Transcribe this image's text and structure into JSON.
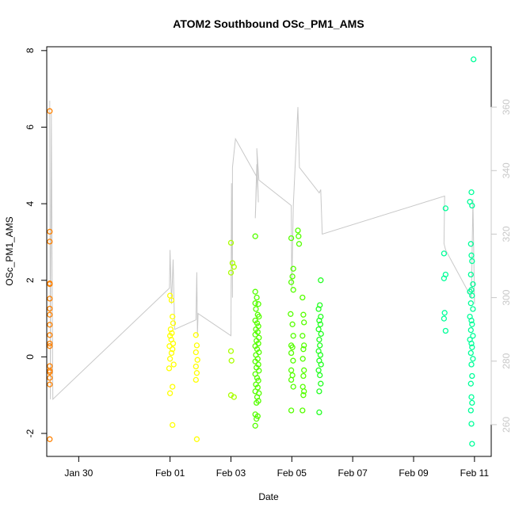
{
  "chart_data": {
    "type": "scatter",
    "title": "ATOM2 Southbound OSc_PM1_AMS",
    "xlabel": "Date",
    "ylabel": "OSc_PM1_AMS",
    "x_unit": "day (day 1 = Feb 01)",
    "xlim": [
      -3.05,
      11.55
    ],
    "ylim": [
      -2.6,
      8.1
    ],
    "x_ticks": [
      {
        "value": -2,
        "label": "Jan 30"
      },
      {
        "value": 1,
        "label": "Feb 01"
      },
      {
        "value": 3,
        "label": "Feb 03"
      },
      {
        "value": 5,
        "label": "Feb 05"
      },
      {
        "value": 7,
        "label": "Feb 07"
      },
      {
        "value": 9,
        "label": "Feb 09"
      },
      {
        "value": 11,
        "label": "Feb 11"
      }
    ],
    "y_ticks": [
      -2,
      0,
      2,
      4,
      6,
      8
    ],
    "y2_ticks": [
      260,
      280,
      300,
      320,
      340,
      360
    ],
    "y2lim": [
      250,
      379
    ],
    "grid": false,
    "secondary_line_color": "#c8c8c8",
    "secondary_axis_color": "#c8c8c8",
    "series": [
      {
        "color": "#ff8000",
        "points": [
          [
            -2.95,
            6.42
          ],
          [
            -2.95,
            3.27
          ],
          [
            -2.95,
            3.01
          ],
          [
            -2.95,
            1.92
          ],
          [
            -2.95,
            1.9
          ],
          [
            -2.95,
            1.52
          ],
          [
            -2.95,
            1.26
          ],
          [
            -2.95,
            1.1
          ],
          [
            -2.95,
            0.84
          ],
          [
            -2.95,
            0.57
          ],
          [
            -2.95,
            0.35
          ],
          [
            -2.95,
            0.28
          ],
          [
            -2.95,
            -0.24
          ],
          [
            -2.95,
            -0.36
          ],
          [
            -2.95,
            -0.4
          ],
          [
            -2.95,
            -0.55
          ],
          [
            -2.95,
            -0.72
          ],
          [
            -2.95,
            -2.15
          ]
        ]
      },
      {
        "color": "#ffff00",
        "points": [
          [
            1.0,
            1.6
          ],
          [
            1.05,
            1.48
          ],
          [
            1.08,
            1.05
          ],
          [
            1.1,
            0.88
          ],
          [
            1.02,
            0.72
          ],
          [
            1.06,
            0.62
          ],
          [
            1.0,
            0.55
          ],
          [
            1.04,
            0.45
          ],
          [
            1.1,
            0.35
          ],
          [
            0.98,
            0.28
          ],
          [
            1.08,
            0.2
          ],
          [
            1.05,
            0.1
          ],
          [
            1.0,
            -0.05
          ],
          [
            1.12,
            -0.2
          ],
          [
            0.97,
            -0.3
          ],
          [
            1.08,
            -0.78
          ],
          [
            1.0,
            -0.95
          ],
          [
            1.08,
            -1.78
          ],
          [
            1.85,
            0.57
          ],
          [
            1.88,
            0.3
          ],
          [
            1.85,
            0.12
          ],
          [
            1.9,
            -0.08
          ],
          [
            1.85,
            -0.25
          ],
          [
            1.88,
            -0.42
          ],
          [
            1.85,
            -0.6
          ],
          [
            1.88,
            -2.15
          ]
        ]
      },
      {
        "color": "#aaff00",
        "points": [
          [
            3.0,
            2.98
          ],
          [
            3.05,
            2.45
          ],
          [
            3.1,
            2.35
          ],
          [
            3.0,
            2.2
          ],
          [
            3.0,
            0.15
          ],
          [
            3.02,
            -0.1
          ],
          [
            3.0,
            -1.0
          ],
          [
            3.1,
            -1.05
          ]
        ]
      },
      {
        "color": "#55ff00",
        "points": [
          [
            3.8,
            3.15
          ],
          [
            3.8,
            1.7
          ],
          [
            3.85,
            1.55
          ],
          [
            3.8,
            1.4
          ],
          [
            3.9,
            1.38
          ],
          [
            3.82,
            1.25
          ],
          [
            3.88,
            1.1
          ],
          [
            3.92,
            1.05
          ],
          [
            3.8,
            0.95
          ],
          [
            3.86,
            0.88
          ],
          [
            3.9,
            0.8
          ],
          [
            3.82,
            0.72
          ],
          [
            3.88,
            0.65
          ],
          [
            3.8,
            0.58
          ],
          [
            3.92,
            0.5
          ],
          [
            3.84,
            0.42
          ],
          [
            3.9,
            0.35
          ],
          [
            3.8,
            0.28
          ],
          [
            3.86,
            0.2
          ],
          [
            3.92,
            0.12
          ],
          [
            3.82,
            0.05
          ],
          [
            3.88,
            -0.05
          ],
          [
            3.8,
            -0.12
          ],
          [
            3.9,
            -0.2
          ],
          [
            3.84,
            -0.28
          ],
          [
            3.92,
            -0.36
          ],
          [
            3.8,
            -0.45
          ],
          [
            3.86,
            -0.55
          ],
          [
            3.9,
            -0.62
          ],
          [
            3.82,
            -0.72
          ],
          [
            3.88,
            -0.8
          ],
          [
            3.8,
            -0.9
          ],
          [
            3.92,
            -0.95
          ],
          [
            3.86,
            -1.05
          ],
          [
            3.84,
            -1.2
          ],
          [
            3.9,
            -1.15
          ],
          [
            3.8,
            -1.5
          ],
          [
            3.88,
            -1.55
          ],
          [
            3.84,
            -1.62
          ],
          [
            3.8,
            -1.8
          ],
          [
            4.98,
            3.1
          ],
          [
            5.05,
            2.3
          ],
          [
            5.02,
            2.1
          ],
          [
            4.98,
            1.95
          ],
          [
            5.05,
            1.75
          ],
          [
            4.96,
            1.12
          ],
          [
            5.02,
            0.85
          ],
          [
            5.05,
            0.55
          ],
          [
            4.98,
            0.3
          ],
          [
            5.02,
            0.25
          ],
          [
            4.98,
            0.1
          ],
          [
            5.04,
            -0.1
          ],
          [
            4.98,
            -0.35
          ],
          [
            5.02,
            -0.48
          ],
          [
            4.98,
            -0.6
          ],
          [
            5.05,
            -0.78
          ],
          [
            4.98,
            -1.4
          ],
          [
            5.2,
            3.3
          ],
          [
            5.22,
            3.15
          ],
          [
            5.24,
            2.95
          ],
          [
            5.35,
            1.55
          ],
          [
            5.38,
            1.1
          ],
          [
            5.4,
            0.9
          ],
          [
            5.35,
            0.55
          ],
          [
            5.4,
            0.3
          ],
          [
            5.38,
            0.2
          ],
          [
            5.36,
            -0.05
          ],
          [
            5.4,
            -0.35
          ],
          [
            5.38,
            -0.5
          ],
          [
            5.36,
            -0.78
          ],
          [
            5.4,
            -0.9
          ],
          [
            5.38,
            -1.0
          ],
          [
            5.35,
            -1.4
          ]
        ]
      },
      {
        "color": "#22ff22",
        "points": [
          [
            5.95,
            2.0
          ],
          [
            5.92,
            1.35
          ],
          [
            5.88,
            1.25
          ],
          [
            5.95,
            1.05
          ],
          [
            5.9,
            0.95
          ],
          [
            5.94,
            0.85
          ],
          [
            5.88,
            0.72
          ],
          [
            5.96,
            0.6
          ],
          [
            5.9,
            0.45
          ],
          [
            5.92,
            0.3
          ],
          [
            5.88,
            0.15
          ],
          [
            5.94,
            0.05
          ],
          [
            5.9,
            -0.1
          ],
          [
            5.96,
            -0.2
          ],
          [
            5.88,
            -0.35
          ],
          [
            5.92,
            -0.48
          ],
          [
            5.95,
            -0.7
          ],
          [
            5.9,
            -0.9
          ],
          [
            5.9,
            -1.45
          ]
        ]
      },
      {
        "color": "#00ff99",
        "points": [
          [
            10.05,
            3.88
          ],
          [
            10.0,
            2.7
          ],
          [
            10.05,
            2.15
          ],
          [
            10.0,
            2.05
          ],
          [
            10.02,
            1.15
          ],
          [
            10.0,
            1.0
          ],
          [
            10.05,
            0.68
          ],
          [
            10.9,
            4.3
          ],
          [
            10.85,
            4.05
          ],
          [
            10.92,
            3.95
          ],
          [
            10.88,
            2.95
          ],
          [
            10.9,
            2.65
          ],
          [
            10.92,
            2.5
          ],
          [
            10.88,
            2.15
          ],
          [
            10.95,
            1.9
          ],
          [
            10.9,
            1.75
          ],
          [
            10.85,
            1.7
          ],
          [
            10.92,
            1.6
          ],
          [
            10.88,
            1.4
          ],
          [
            10.95,
            1.25
          ],
          [
            10.85,
            1.05
          ],
          [
            10.9,
            0.95
          ],
          [
            10.92,
            0.85
          ],
          [
            10.88,
            0.7
          ],
          [
            10.95,
            0.55
          ],
          [
            10.85,
            0.45
          ],
          [
            10.9,
            0.35
          ],
          [
            10.92,
            0.25
          ],
          [
            10.88,
            0.1
          ],
          [
            10.95,
            -0.05
          ],
          [
            10.9,
            -0.2
          ],
          [
            10.92,
            -0.5
          ],
          [
            10.88,
            -0.7
          ],
          [
            10.9,
            -1.05
          ],
          [
            10.92,
            -1.2
          ],
          [
            10.88,
            -1.4
          ],
          [
            10.9,
            -1.75
          ],
          [
            10.92,
            -2.27
          ],
          [
            10.97,
            7.77
          ]
        ]
      }
    ],
    "secondary_line": [
      [
        -2.95,
        362
      ],
      [
        -2.93,
        268
      ],
      [
        -2.9,
        358
      ],
      [
        -2.85,
        268
      ],
      [
        0.98,
        303
      ],
      [
        1.0,
        315
      ],
      [
        1.05,
        298
      ],
      [
        1.1,
        312
      ],
      [
        1.15,
        290
      ],
      [
        1.85,
        293
      ],
      [
        1.88,
        308
      ],
      [
        1.9,
        288
      ],
      [
        1.92,
        295
      ],
      [
        3.0,
        288
      ],
      [
        3.02,
        336
      ],
      [
        3.05,
        300
      ],
      [
        3.05,
        341
      ],
      [
        3.15,
        350
      ],
      [
        3.85,
        338
      ],
      [
        3.8,
        325
      ],
      [
        3.85,
        342
      ],
      [
        3.9,
        330
      ],
      [
        3.85,
        347
      ],
      [
        3.92,
        337
      ],
      [
        4.98,
        329
      ],
      [
        5.0,
        303
      ],
      [
        5.05,
        329
      ],
      [
        5.2,
        360
      ],
      [
        5.25,
        341
      ],
      [
        5.9,
        333
      ],
      [
        5.95,
        334
      ],
      [
        6.0,
        320
      ],
      [
        10.02,
        332
      ],
      [
        10.0,
        317
      ],
      [
        10.05,
        315
      ],
      [
        10.9,
        300
      ],
      [
        10.95,
        331
      ],
      [
        11.0,
        298
      ],
      [
        10.98,
        303
      ]
    ]
  }
}
